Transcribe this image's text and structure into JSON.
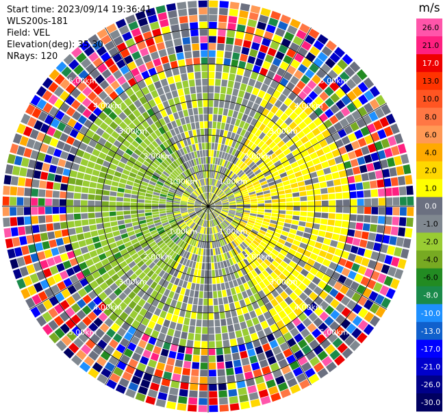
{
  "header": {
    "start_time": "Start time: 2023/09/14 19:36:41",
    "instrument": "WLS200s-181",
    "field": "Field: VEL",
    "elevation": "Elevation(deg): 35.30",
    "nrays": "NRays: 120"
  },
  "colorbar": {
    "unit": "m/s",
    "ticks": [
      "26.0",
      "21.0",
      "17.0",
      "13.0",
      "10.0",
      "8.0",
      "6.0",
      "4.0",
      "2.0",
      "1.0",
      "0.0",
      "-1.0",
      "-2.0",
      "-4.0",
      "-6.0",
      "-8.0",
      "-10.0",
      "-13.0",
      "-17.0",
      "-21.0",
      "-26.0",
      "-30.0"
    ],
    "colors": [
      "#ff55aa",
      "#ff2080",
      "#ee0000",
      "#ff3300",
      "#ff5522",
      "#ff7744",
      "#ff9955",
      "#ffaa00",
      "#ffd700",
      "#ffff00",
      "#6b7080",
      "#808890",
      "#99cc33",
      "#77aa22",
      "#228b22",
      "#1a8a4a",
      "#1e90ff",
      "#1060cc",
      "#0000ff",
      "#0000cc",
      "#000088",
      "#000060"
    ]
  },
  "chart_data": {
    "type": "ppi",
    "field": "VEL",
    "unit": "m/s",
    "nrays": 120,
    "range_rings_km": [
      1.0,
      2.0,
      3.0,
      4.0,
      5.0
    ],
    "range_labels": [
      "1.00km",
      "2.00km",
      "3.00km",
      "4.00km",
      "5.00km"
    ],
    "max_range_km": 5.8,
    "gates_per_ray": 29,
    "azimuth_spokes_deg": [
      0,
      30,
      60,
      90,
      120,
      150,
      180,
      210,
      240,
      270,
      300,
      330
    ],
    "pattern": {
      "near_range_km": 1.0,
      "approaching_sector_deg": [
        210,
        330
      ],
      "receding_sector_deg": [
        30,
        150
      ],
      "noise_beyond_km": 4.0
    }
  }
}
